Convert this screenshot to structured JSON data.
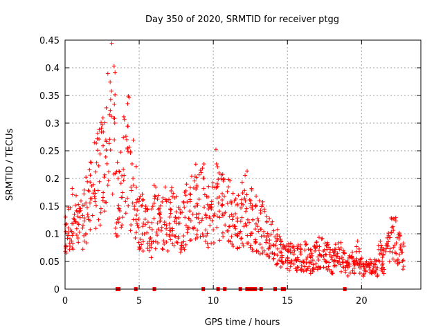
{
  "chart_data": {
    "type": "scatter",
    "title": "Day 350 of 2020, SRMTID for receiver ptgg",
    "xlabel": "GPS time / hours",
    "ylabel": "SRMTID / TECUs",
    "xlim": [
      0,
      24
    ],
    "ylim": [
      0,
      0.45
    ],
    "xticks": [
      0,
      5,
      10,
      15,
      20
    ],
    "yticks": [
      0,
      0.05,
      0.1,
      0.15,
      0.2,
      0.25,
      0.3,
      0.35,
      0.4,
      0.45
    ],
    "xtick_labels": [
      "0",
      "5",
      "10",
      "15",
      "20"
    ],
    "ytick_labels": [
      "0",
      "0.05",
      "0.1",
      "0.15",
      "0.2",
      "0.25",
      "0.3",
      "0.35",
      "0.4",
      "0.45"
    ],
    "grid": true,
    "marker": "+",
    "color": "#ff0000",
    "zero_markers_x": [
      3.5,
      3.6,
      4.75,
      6.0,
      9.3,
      10.3,
      10.75,
      11.8,
      12.25,
      12.4,
      12.5,
      12.6,
      12.7,
      12.8,
      13.2,
      14.15,
      14.65,
      14.75,
      18.85
    ],
    "series": [
      {
        "name": "SRMTID",
        "x": [
          0.0,
          0.25,
          0.5,
          0.75,
          1.0,
          1.25,
          1.5,
          1.75,
          2.0,
          2.25,
          2.5,
          2.75,
          3.0,
          3.25,
          3.5,
          3.75,
          4.0,
          4.25,
          4.5,
          4.75,
          5.0,
          5.25,
          5.5,
          5.75,
          6.0,
          6.25,
          6.5,
          6.75,
          7.0,
          7.25,
          7.5,
          7.75,
          8.0,
          8.25,
          8.5,
          8.75,
          9.0,
          9.25,
          9.5,
          9.75,
          10.0,
          10.25,
          10.5,
          10.75,
          11.0,
          11.25,
          11.5,
          11.75,
          12.0,
          12.25,
          12.5,
          12.75,
          13.0,
          13.25,
          13.5,
          13.75,
          14.0,
          14.25,
          14.5,
          14.75,
          15.0,
          15.25,
          15.5,
          15.75,
          16.0,
          16.25,
          16.5,
          16.75,
          17.0,
          17.25,
          17.5,
          17.75,
          18.0,
          18.25,
          18.5,
          18.75,
          19.0,
          19.25,
          19.5,
          19.75,
          20.0,
          20.25,
          20.5,
          20.75,
          21.0,
          21.25,
          21.5,
          21.75,
          22.0,
          22.25,
          22.5,
          22.75
        ],
        "y": [
          0.09,
          0.11,
          0.13,
          0.12,
          0.11,
          0.13,
          0.15,
          0.16,
          0.19,
          0.2,
          0.22,
          0.24,
          0.27,
          0.31,
          0.16,
          0.18,
          0.22,
          0.26,
          0.19,
          0.16,
          0.13,
          0.12,
          0.11,
          0.1,
          0.13,
          0.12,
          0.12,
          0.13,
          0.12,
          0.14,
          0.12,
          0.11,
          0.13,
          0.14,
          0.15,
          0.16,
          0.15,
          0.16,
          0.12,
          0.13,
          0.14,
          0.18,
          0.16,
          0.15,
          0.14,
          0.13,
          0.12,
          0.12,
          0.14,
          0.15,
          0.13,
          0.12,
          0.12,
          0.11,
          0.1,
          0.09,
          0.09,
          0.08,
          0.07,
          0.06,
          0.06,
          0.06,
          0.06,
          0.06,
          0.055,
          0.06,
          0.05,
          0.055,
          0.06,
          0.07,
          0.06,
          0.06,
          0.05,
          0.06,
          0.06,
          0.05,
          0.04,
          0.045,
          0.05,
          0.06,
          0.04,
          0.035,
          0.04,
          0.045,
          0.04,
          0.06,
          0.05,
          0.07,
          0.09,
          0.09,
          0.07,
          0.06
        ]
      }
    ]
  }
}
